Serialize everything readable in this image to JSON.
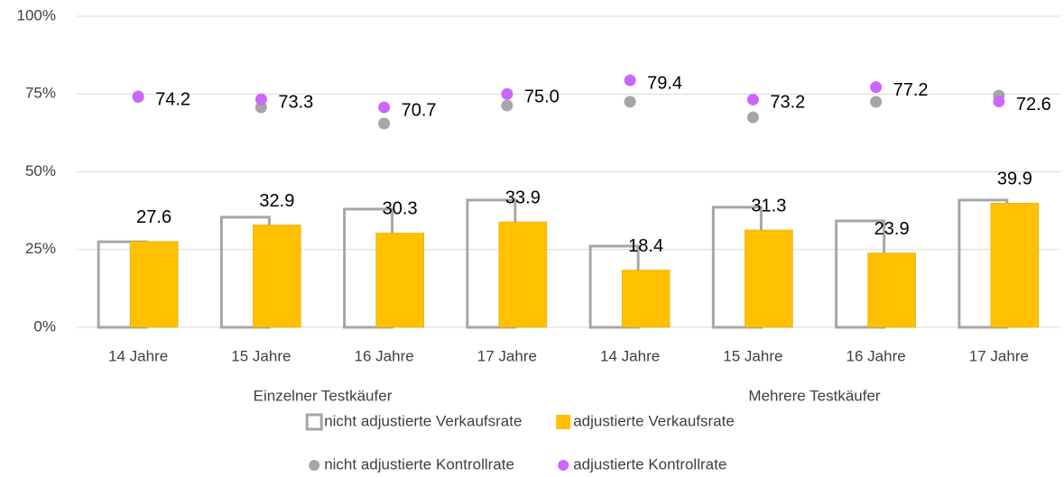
{
  "chart_data": {
    "type": "bar",
    "categories": [
      "14 Jahre",
      "15 Jahre",
      "16 Jahre",
      "17 Jahre",
      "14 Jahre",
      "15 Jahre",
      "16 Jahre",
      "17 Jahre"
    ],
    "group_labels": [
      "Einzelner Testkäufer",
      "Mehrere Testkäufer"
    ],
    "ylim": [
      0,
      100
    ],
    "yticks": [
      {
        "value": 0,
        "label": "0%"
      },
      {
        "value": 25,
        "label": "25%"
      },
      {
        "value": 50,
        "label": "50%"
      },
      {
        "value": 75,
        "label": "75%"
      },
      {
        "value": 100,
        "label": "100%"
      }
    ],
    "grid": true,
    "series": [
      {
        "name": "nicht adjustierte Verkaufsrate",
        "type": "bar",
        "style": "outline",
        "color": "#a6a6a6",
        "values": [
          27.5,
          35.4,
          38.0,
          40.9,
          26.1,
          38.6,
          34.2,
          40.9
        ]
      },
      {
        "name": "adjustierte Verkaufsrate",
        "type": "bar",
        "style": "filled",
        "color": "#ffc000",
        "values": [
          27.6,
          32.9,
          30.3,
          33.9,
          18.4,
          31.3,
          23.9,
          39.9
        ]
      },
      {
        "name": "nicht adjustierte Kontrollrate",
        "type": "scatter",
        "color": "#a6a6a6",
        "values": [
          74.0,
          70.7,
          65.5,
          71.3,
          72.5,
          67.5,
          72.5,
          74.5
        ]
      },
      {
        "name": "adjustierte Kontrollrate",
        "type": "scatter",
        "color": "#cc66ff",
        "values": [
          74.2,
          73.3,
          70.7,
          75.0,
          79.4,
          73.2,
          77.2,
          72.6
        ],
        "value_labels": [
          "74.2",
          "73.3",
          "70.7",
          "75.0",
          "79.4",
          "73.2",
          "77.2",
          "72.6"
        ]
      }
    ],
    "labeled_series": [
      1,
      3
    ]
  }
}
